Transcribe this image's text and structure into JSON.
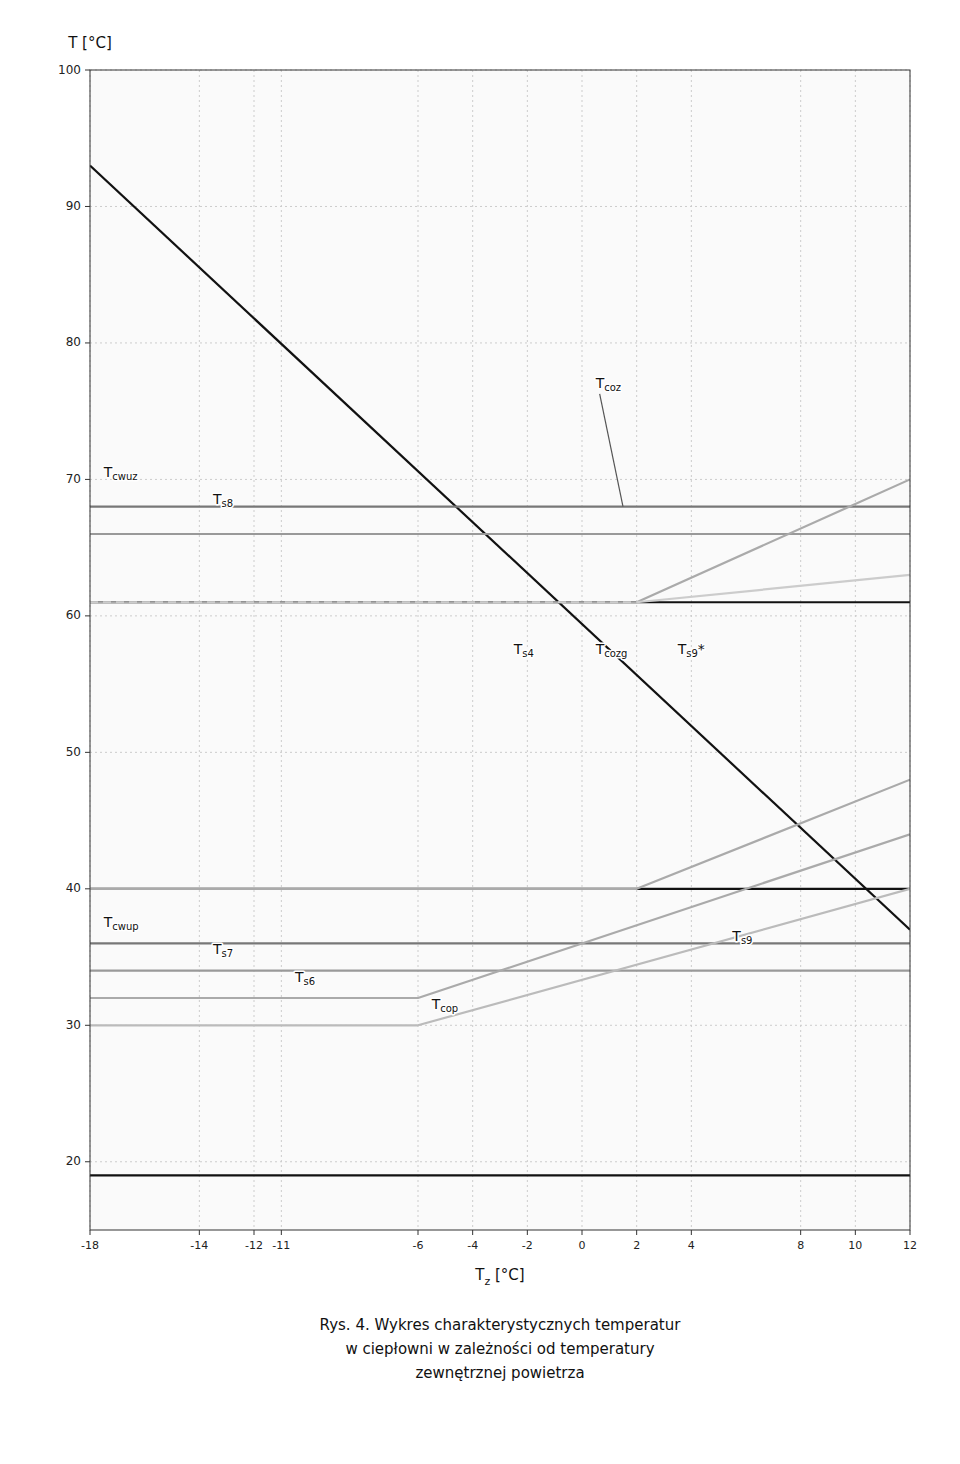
{
  "chart_data": {
    "type": "line",
    "xlabel": "Tz [°C]",
    "ylabel": "T [°C]",
    "caption": [
      "Rys. 4. Wykres charakterystycznych temperatur",
      "w ciepłowni w zależności od temperatury",
      "zewnętrznej powietrza"
    ],
    "xlim": [
      -18,
      12
    ],
    "ylim": [
      15,
      100
    ],
    "xticks": [
      -18,
      -14,
      -12,
      -11,
      -6,
      -4,
      -2,
      0,
      2,
      4,
      8,
      10,
      12
    ],
    "yticks": [
      20,
      30,
      40,
      50,
      60,
      70,
      80,
      90,
      100
    ],
    "grid": true,
    "series": [
      {
        "x": [
          -18,
          12
        ],
        "values": [
          93,
          37
        ],
        "color": "#111111"
      },
      {
        "x": [
          -18,
          12
        ],
        "values": [
          68,
          68
        ],
        "color": "#777777"
      },
      {
        "x": [
          -18,
          12
        ],
        "values": [
          66,
          66
        ],
        "color": "#999999"
      },
      {
        "x": [
          -18,
          12
        ],
        "values": [
          61,
          61
        ],
        "color": "#111111"
      },
      {
        "x": [
          -18,
          12
        ],
        "values": [
          40,
          40
        ],
        "color": "#111111"
      },
      {
        "x": [
          -18,
          12
        ],
        "values": [
          36,
          36
        ],
        "color": "#777777"
      },
      {
        "x": [
          -18,
          12
        ],
        "values": [
          34,
          34
        ],
        "color": "#999999"
      },
      {
        "x": [
          -18,
          -6,
          12
        ],
        "values": [
          32,
          32,
          44
        ],
        "color": "#aaaaaa"
      },
      {
        "x": [
          -18,
          -6,
          12
        ],
        "values": [
          30,
          30,
          40
        ],
        "color": "#bbbbbb"
      },
      {
        "x": [
          -18,
          12
        ],
        "values": [
          19,
          19
        ],
        "color": "#111111"
      },
      {
        "x": [
          -18,
          2,
          12
        ],
        "values": [
          61,
          61,
          70
        ],
        "color": "#aaaaaa"
      },
      {
        "x": [
          -18,
          2
        ],
        "values": [
          61,
          61
        ],
        "color": "#cccccc",
        "line_style": "dashed"
      },
      {
        "x": [
          2,
          12
        ],
        "values": [
          61,
          63
        ],
        "color": "#cccccc",
        "line_style": "solid"
      },
      {
        "x": [
          -18,
          2,
          12
        ],
        "values": [
          40,
          40,
          48
        ],
        "color": "#aaaaaa"
      }
    ],
    "annotations": [
      {
        "text": "Tcoz",
        "x": 0.5,
        "y": 77,
        "arrow_x": 1.5,
        "arrow_y": 68
      },
      {
        "text": "Tcwuz",
        "x": -17.5,
        "y": 70.5
      },
      {
        "text": "Ts8",
        "x": -13.5,
        "y": 68.5
      },
      {
        "text": "Ts4",
        "x": -2.5,
        "y": 57.5
      },
      {
        "text": "Tcozg",
        "x": 0.5,
        "y": 57.5
      },
      {
        "text": "Ts9*",
        "x": 3.5,
        "y": 57.5
      },
      {
        "text": "Tcwup",
        "x": -17.5,
        "y": 37.5
      },
      {
        "text": "Ts7",
        "x": -13.5,
        "y": 35.5
      },
      {
        "text": "Ts6",
        "x": -10.5,
        "y": 33.5
      },
      {
        "text": "Tcop",
        "x": -5.5,
        "y": 31.5
      },
      {
        "text": "Ts9",
        "x": 5.5,
        "y": 36.5
      }
    ]
  }
}
